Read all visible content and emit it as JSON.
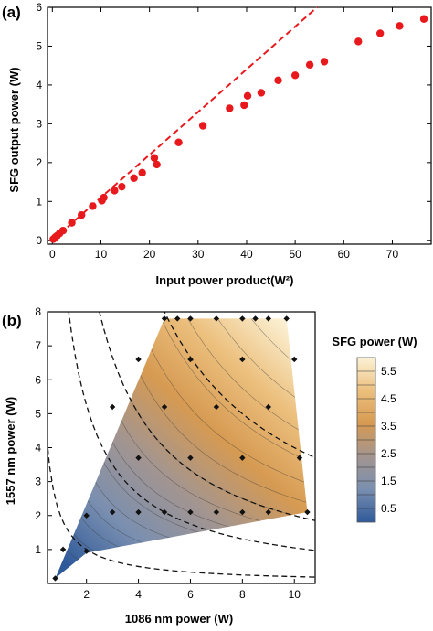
{
  "chart_data": [
    {
      "type": "scatter",
      "panel_label": "(a)",
      "xlabel": "Input power product(W²)",
      "ylabel": "SFG output power (W)",
      "xlim": [
        -1,
        78
      ],
      "ylim": [
        -0.1,
        6
      ],
      "xticks": [
        "0",
        "10",
        "20",
        "30",
        "40",
        "50",
        "60",
        "70"
      ],
      "yticks": [
        "0",
        "1",
        "2",
        "3",
        "4",
        "5",
        "6"
      ],
      "grid": false,
      "points_color": "#e8191d",
      "fit_color": "#e8191d",
      "series": [
        {
          "x": [
            0.2,
            0.6,
            1.0,
            1.5,
            2.2,
            4.0,
            6.0,
            8.3,
            10.2,
            10.6,
            12.8,
            14.3,
            16.8,
            18.5,
            21.0,
            21.5,
            26.0,
            31.0,
            36.5,
            39.5,
            40.2,
            43.0,
            46.5,
            50.0,
            53.0,
            56.0,
            63.0,
            67.5,
            71.5,
            76.5
          ],
          "y": [
            0.03,
            0.08,
            0.12,
            0.18,
            0.25,
            0.45,
            0.65,
            0.88,
            1.02,
            1.1,
            1.28,
            1.38,
            1.6,
            1.74,
            2.12,
            1.95,
            2.52,
            2.95,
            3.4,
            3.48,
            3.72,
            3.8,
            4.12,
            4.25,
            4.52,
            4.6,
            5.12,
            5.33,
            5.52,
            5.7
          ]
        },
        {
          "type": "line",
          "style": "dashed",
          "x": [
            0,
            54.5
          ],
          "y": [
            0,
            6.0
          ]
        }
      ]
    },
    {
      "type": "heatmap",
      "panel_label": "(b)",
      "xlabel": "1086 nm power (W)",
      "ylabel": "1557 nm power (W)",
      "xlim": [
        0.5,
        10.8
      ],
      "ylim": [
        0,
        8
      ],
      "xticks": [
        "2",
        "4",
        "6",
        "8",
        "10"
      ],
      "yticks": [
        "1",
        "2",
        "3",
        "4",
        "5",
        "6",
        "7",
        "8"
      ],
      "colorbar_title": "SFG power (W)",
      "colorbar_ticks": [
        "0.5",
        "1.5",
        "2.5",
        "3.5",
        "4.5",
        "5.5"
      ],
      "colorbar_range": [
        0,
        6
      ],
      "colorbar_colors": [
        "#2f5a9a",
        "#7a8fb0",
        "#a39590",
        "#d69a52",
        "#ecc07e",
        "#fcf2d6"
      ],
      "region_polygon": [
        [
          0.8,
          0.15
        ],
        [
          5.0,
          7.8
        ],
        [
          9.7,
          7.8
        ],
        [
          10.5,
          2.1
        ],
        [
          2.0,
          0.9
        ]
      ],
      "measurement_points": {
        "x": [
          0.8,
          1.1,
          2.0,
          2.0,
          3.0,
          4.0,
          5.0,
          6.0,
          7.0,
          8.0,
          9.0,
          10.5,
          4.0,
          6.0,
          8.0,
          10.2,
          3.0,
          5.0,
          7.0,
          9.0,
          4.0,
          6.0,
          8.0,
          10.0,
          5.0,
          5.5,
          6.0,
          7.0,
          8.0,
          8.5,
          9.0,
          9.7
        ],
        "y": [
          0.15,
          1.0,
          0.95,
          2.0,
          2.1,
          2.1,
          2.1,
          2.1,
          2.1,
          2.1,
          2.1,
          2.1,
          3.7,
          3.7,
          3.7,
          3.7,
          5.2,
          5.2,
          5.2,
          5.2,
          6.6,
          6.6,
          6.6,
          6.6,
          7.8,
          7.8,
          7.8,
          7.8,
          7.8,
          7.8,
          7.8,
          7.8
        ]
      },
      "dashed_curves": [
        2.0,
        10.5,
        20.0,
        40.0
      ]
    }
  ]
}
